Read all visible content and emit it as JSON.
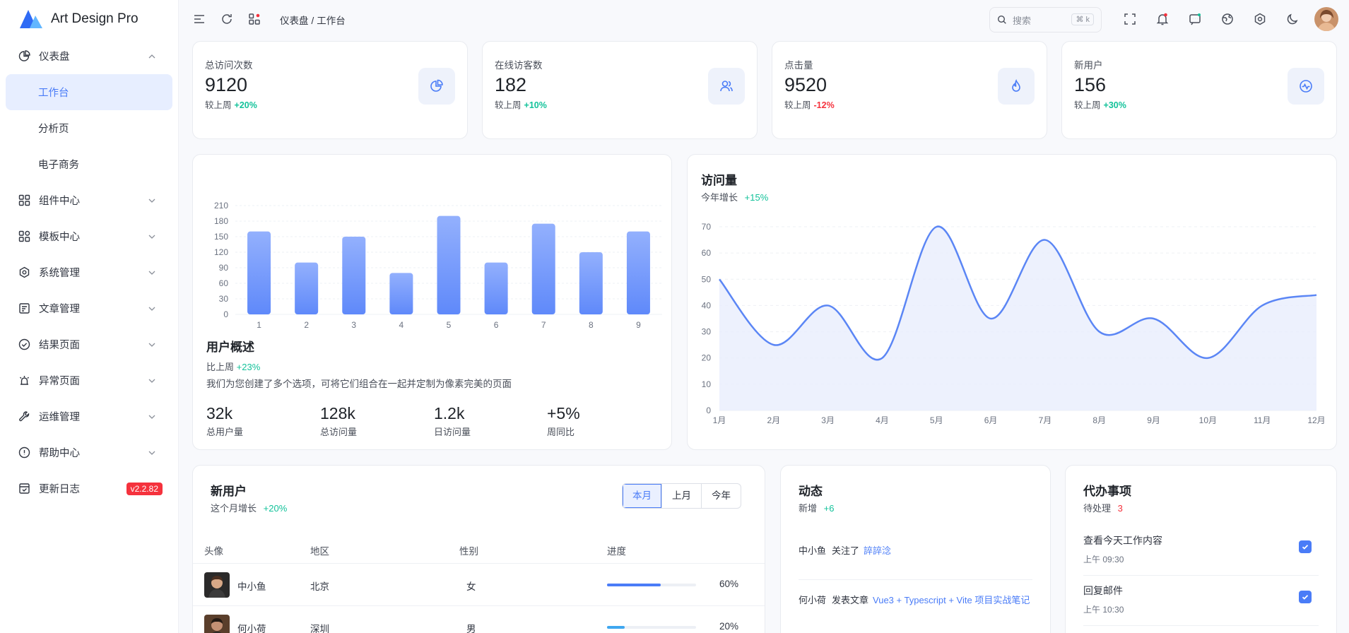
{
  "app": {
    "title": "Art Design Pro"
  },
  "sidebar": {
    "items": [
      {
        "label": "仪表盘"
      },
      {
        "label": "工作台"
      },
      {
        "label": "分析页"
      },
      {
        "label": "电子商务"
      },
      {
        "label": "组件中心"
      },
      {
        "label": "模板中心"
      },
      {
        "label": "系统管理"
      },
      {
        "label": "文章管理"
      },
      {
        "label": "结果页面"
      },
      {
        "label": "异常页面"
      },
      {
        "label": "运维管理"
      },
      {
        "label": "帮助中心"
      },
      {
        "label": "更新日志",
        "badge": "v2.2.82"
      }
    ]
  },
  "header": {
    "breadcrumb": [
      "仪表盘",
      "工作台"
    ],
    "search_placeholder": "搜索",
    "search_kbd": "⌘ k"
  },
  "stats": [
    {
      "label": "总访问次数",
      "value": "9120",
      "compare": "较上周",
      "pct": "+20%",
      "trend": "up",
      "icon": "pie-chart-icon"
    },
    {
      "label": "在线访客数",
      "value": "182",
      "compare": "较上周",
      "pct": "+10%",
      "trend": "up",
      "icon": "users-icon"
    },
    {
      "label": "点击量",
      "value": "9520",
      "compare": "较上周",
      "pct": "-12%",
      "trend": "down",
      "icon": "fire-icon"
    },
    {
      "label": "新用户",
      "value": "156",
      "compare": "较上周",
      "pct": "+30%",
      "trend": "up",
      "icon": "activity-icon"
    }
  ],
  "overview": {
    "title": "用户概述",
    "compare": "比上周",
    "pct": "+23%",
    "desc": "我们为您创建了多个选项，可将它们组合在一起并定制为像素完美的页面",
    "metrics": [
      {
        "n": "32k",
        "l": "总用户量"
      },
      {
        "n": "128k",
        "l": "总访问量"
      },
      {
        "n": "1.2k",
        "l": "日访问量"
      },
      {
        "n": "+5%",
        "l": "周同比"
      }
    ]
  },
  "visits": {
    "title": "访问量",
    "sub": "今年增长",
    "pct": "+15%"
  },
  "chart_data": [
    {
      "type": "bar",
      "categories": [
        "1",
        "2",
        "3",
        "4",
        "5",
        "6",
        "7",
        "8",
        "9"
      ],
      "values": [
        160,
        100,
        150,
        80,
        190,
        100,
        175,
        120,
        160
      ],
      "ylim": [
        0,
        210
      ],
      "yticks": [
        0,
        30,
        60,
        90,
        120,
        150,
        180,
        210
      ],
      "color": "#6b93fb"
    },
    {
      "type": "area",
      "categories": [
        "1月",
        "2月",
        "3月",
        "4月",
        "5月",
        "6月",
        "7月",
        "8月",
        "9月",
        "10月",
        "11月",
        "12月"
      ],
      "values": [
        50,
        25,
        40,
        20,
        70,
        35,
        65,
        30,
        35,
        20,
        40,
        44
      ],
      "ylim": [
        0,
        70
      ],
      "yticks": [
        0,
        10,
        20,
        30,
        40,
        50,
        60,
        70
      ],
      "color": "#5b86f5"
    }
  ],
  "new_users": {
    "title": "新用户",
    "sub": "这个月增长",
    "pct": "+20%",
    "tabs": [
      "本月",
      "上月",
      "今年"
    ],
    "columns": [
      "头像",
      "地区",
      "性别",
      "进度"
    ],
    "rows": [
      {
        "name": "中小鱼",
        "region": "北京",
        "gender": "女",
        "progress": 60,
        "progress_label": "60%",
        "color": "#4a7cf7"
      },
      {
        "name": "何小荷",
        "region": "深圳",
        "gender": "男",
        "progress": 20,
        "progress_label": "20%",
        "color": "#3fa7f0"
      }
    ]
  },
  "activity": {
    "title": "动态",
    "sub": "新增",
    "count": "+6",
    "items": [
      {
        "user": "中小鱼",
        "action": "关注了",
        "target": "誶誶淰"
      },
      {
        "user": "何小荷",
        "action": "发表文章",
        "target": "Vue3 + Typescript + Vite 项目实战笔记"
      }
    ]
  },
  "todo": {
    "title": "代办事项",
    "sub": "待处理",
    "count": "3",
    "items": [
      {
        "title": "查看今天工作内容",
        "time": "上午 09:30"
      },
      {
        "title": "回复邮件",
        "time": "上午 10:30"
      }
    ]
  }
}
